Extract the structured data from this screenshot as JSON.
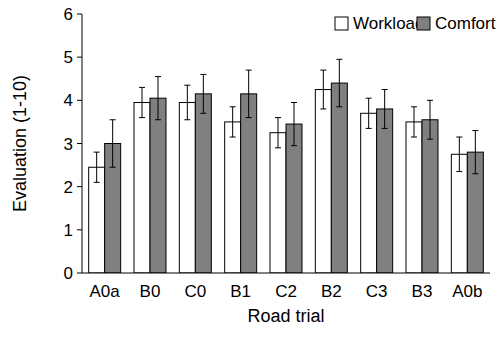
{
  "chart_data": {
    "type": "bar",
    "x_label": "Road trial",
    "y_label": "Evaluation (1-10)",
    "categories": [
      "A0a",
      "B0",
      "C0",
      "B1",
      "C2",
      "B2",
      "C3",
      "B3",
      "A0b"
    ],
    "series": [
      {
        "name": "Workload",
        "color": "#ffffff",
        "values": [
          2.45,
          3.95,
          3.95,
          3.5,
          3.25,
          4.25,
          3.7,
          3.5,
          2.75
        ],
        "errors": [
          0.35,
          0.35,
          0.4,
          0.35,
          0.35,
          0.45,
          0.35,
          0.35,
          0.4
        ]
      },
      {
        "name": "Comfort",
        "color": "#808080",
        "values": [
          3.0,
          4.05,
          4.15,
          4.15,
          3.45,
          4.4,
          3.8,
          3.55,
          2.8
        ],
        "errors": [
          0.55,
          0.5,
          0.45,
          0.55,
          0.5,
          0.55,
          0.45,
          0.45,
          0.5
        ]
      }
    ],
    "ylim": [
      0,
      6
    ],
    "yticks": [
      0,
      1,
      2,
      3,
      4,
      5,
      6
    ],
    "grid": false,
    "legend": "top-right"
  }
}
